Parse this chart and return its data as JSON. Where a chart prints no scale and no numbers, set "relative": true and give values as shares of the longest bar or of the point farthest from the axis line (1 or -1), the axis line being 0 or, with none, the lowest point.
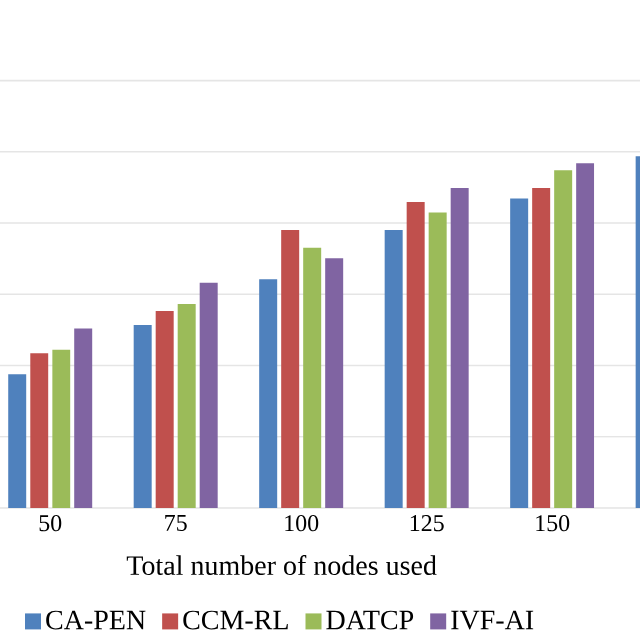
{
  "chart_data": {
    "type": "bar",
    "xlabel": "Total number of nodes used",
    "categories": [
      "50",
      "75",
      "100",
      "125",
      "150",
      null
    ],
    "relative": true,
    "grid": "y",
    "legend": "bottom",
    "series": [
      {
        "name": "CA-PEN",
        "color": "#4f81bd",
        "values": [
          0.38,
          0.52,
          0.65,
          0.79,
          0.88,
          1
        ]
      },
      {
        "name": "CCM-RL",
        "color": "#c0504d",
        "values": [
          0.44,
          0.56,
          0.79,
          0.87,
          0.91,
          null
        ]
      },
      {
        "name": "DATCP",
        "color": "#9bbb59",
        "values": [
          0.45,
          0.58,
          0.74,
          0.84,
          0.96,
          null
        ]
      },
      {
        "name": "IVF-AI",
        "color": "#8064a2",
        "values": [
          0.51,
          0.64,
          0.71,
          0.91,
          0.98,
          null
        ]
      }
    ]
  }
}
